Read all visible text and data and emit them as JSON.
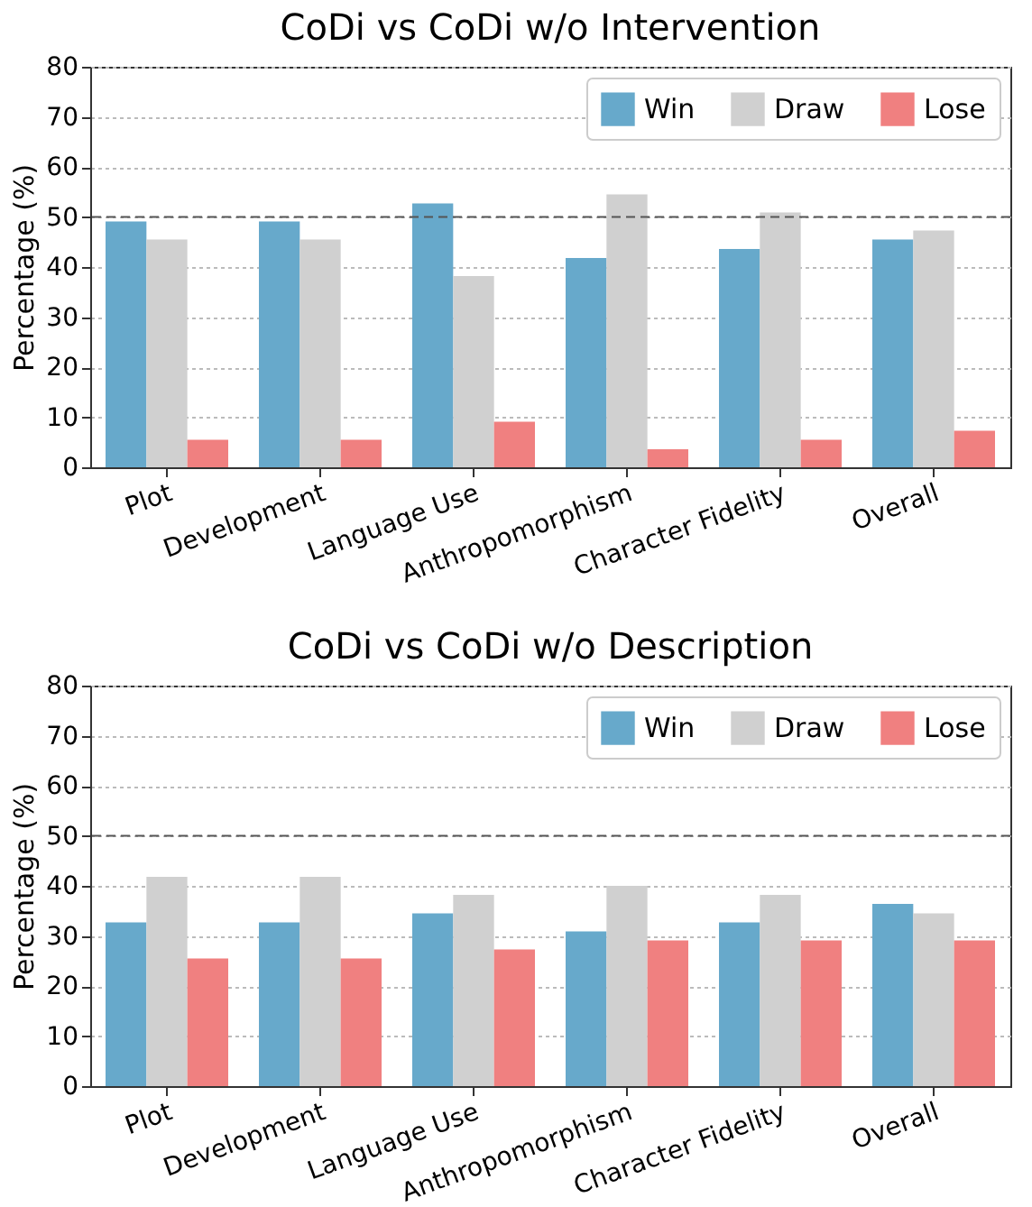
{
  "chart_data": [
    {
      "type": "bar",
      "title": "CoDi vs CoDi w/o Intervention",
      "ylabel": "Percentage (%)",
      "categories": [
        "Plot",
        "Development",
        "Language Use",
        "Anthropomorphism",
        "Character Fidelity",
        "Overall"
      ],
      "series": [
        {
          "name": "Win",
          "color": "#67a9cb",
          "values": [
            49.1,
            49.1,
            52.7,
            41.8,
            43.6,
            45.5
          ]
        },
        {
          "name": "Draw",
          "color": "#d0d0d0",
          "values": [
            45.5,
            45.5,
            38.2,
            54.5,
            50.9,
            47.3
          ]
        },
        {
          "name": "Lose",
          "color": "#f08080",
          "values": [
            5.5,
            5.5,
            9.1,
            3.6,
            5.5,
            7.3
          ]
        }
      ],
      "ylim": [
        0,
        80
      ],
      "yticks": [
        0,
        10,
        20,
        30,
        40,
        50,
        60,
        70,
        80
      ],
      "grid": "y",
      "legend": "top right",
      "ref_lines": [
        {
          "axis": "y",
          "value": 50,
          "color": "#555555",
          "line_style": "dashed"
        }
      ]
    },
    {
      "type": "bar",
      "title": "CoDi vs CoDi w/o Description",
      "ylabel": "Percentage (%)",
      "categories": [
        "Plot",
        "Development",
        "Language Use",
        "Anthropomorphism",
        "Character Fidelity",
        "Overall"
      ],
      "series": [
        {
          "name": "Win",
          "color": "#67a9cb",
          "values": [
            32.7,
            32.7,
            34.5,
            30.9,
            32.7,
            36.4
          ]
        },
        {
          "name": "Draw",
          "color": "#d0d0d0",
          "values": [
            41.8,
            41.8,
            38.2,
            40.0,
            38.2,
            34.5
          ]
        },
        {
          "name": "Lose",
          "color": "#f08080",
          "values": [
            25.5,
            25.5,
            27.3,
            29.1,
            29.1,
            29.1
          ]
        }
      ],
      "ylim": [
        0,
        80
      ],
      "yticks": [
        0,
        10,
        20,
        30,
        40,
        50,
        60,
        70,
        80
      ],
      "grid": "y",
      "legend": "top right",
      "ref_lines": [
        {
          "axis": "y",
          "value": 50,
          "color": "#555555",
          "line_style": "dashed"
        }
      ]
    }
  ]
}
